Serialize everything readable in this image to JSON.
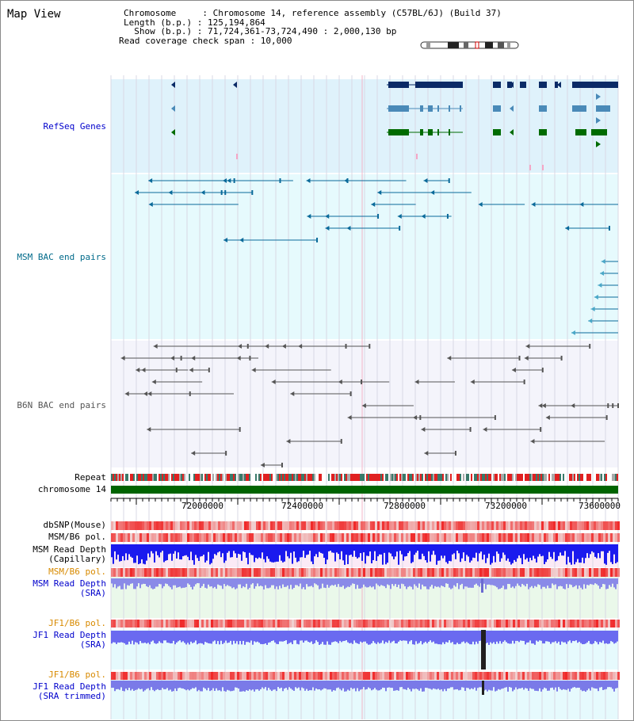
{
  "title": "Map View",
  "info": {
    "chromosome_line": "Chromosome     : Chromosome 14, reference assembly (C57BL/6J) (Build 37)",
    "length_line": "Length (b.p.) : 125,194,864",
    "show_line": "  Show (b.p.) : 71,724,361-73,724,490 : 2,000,130 bp",
    "coverage_line": "Read coverage check span : 10,000"
  },
  "tracks": {
    "refseq": "RefSeq Genes",
    "msm_bac": "MSM BAC end pairs",
    "b6n_bac": "B6N BAC end pairs",
    "repeat": "Repeat",
    "chromosome": "chromosome 14",
    "dbsnp": "dbSNP(Mouse)",
    "msm_b6_pol_1": "MSM/B6 pol.",
    "msm_read_depth_cap": "MSM Read Depth\n(Capillary)",
    "msm_b6_pol_2": "MSM/B6 pol.",
    "msm_read_depth_sra": "MSM Read Depth\n(SRA)",
    "jf1_b6_pol_1": "JF1/B6 pol.",
    "jf1_read_depth_sra": "JF1 Read Depth\n(SRA)",
    "jf1_b6_pol_2": "JF1/B6 pol.",
    "jf1_read_depth_trim": "JF1 Read Depth\n(SRA trimmed)"
  },
  "axis_ticks": [
    "72000000",
    "72400000",
    "72800000",
    "73200000",
    "73600000"
  ],
  "colors": {
    "refseq_bg": "#dff2fb",
    "msm_bg": "#e6fafd",
    "b6n_bg": "#f4f4fb",
    "chromosome": "#006400",
    "gene_dark": "#0a2a66",
    "gene_mid": "#4a8ab8",
    "gene_green": "#006b00",
    "label_blue": "#0000cc",
    "label_orange": "#d88a00",
    "label_teal": "#006a8a"
  }
}
